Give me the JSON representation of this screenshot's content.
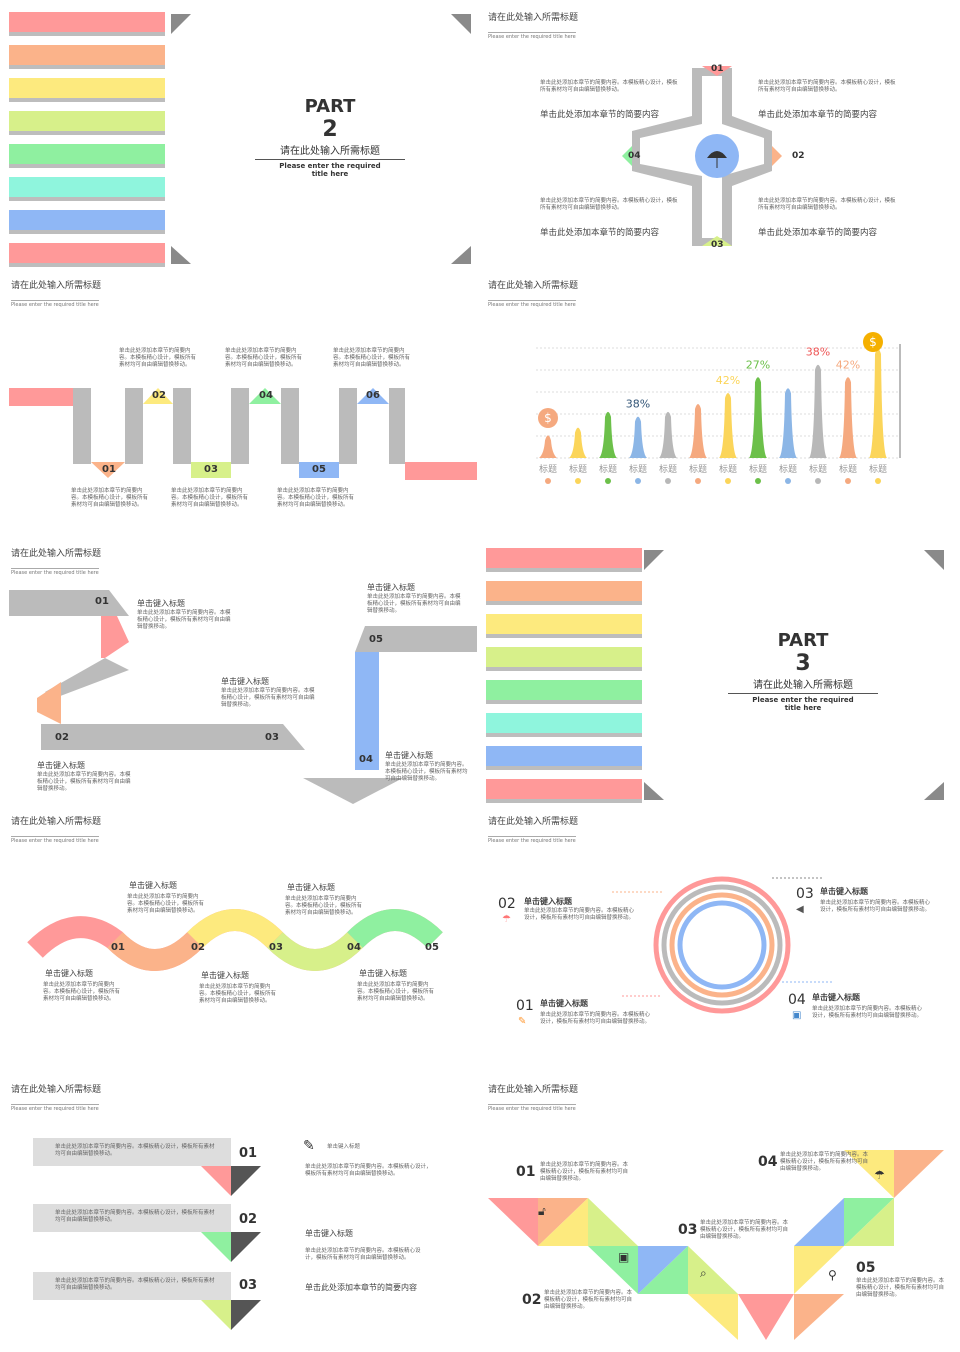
{
  "common": {
    "header_title": "请在此处输入所需标题",
    "header_sub": "Please enter the required title here",
    "summary": "单击此处添加本章节的简要内容",
    "desc_long": "单击此处添加本章节的简要内容。本模板精心设计，模板所有素材均可自由编辑替换移动。",
    "click_title": "单击键入标题",
    "label": "标题"
  },
  "part2": {
    "part": "PART",
    "number": "2",
    "title": "请在此处输入所需标题",
    "sub1": "Please enter the required",
    "sub2": "title here"
  },
  "part3": {
    "part": "PART",
    "number": "3",
    "title": "请在此处输入所需标题",
    "sub1": "Please enter the required",
    "sub2": "title here"
  },
  "cross": {
    "nums": [
      "01",
      "02",
      "03",
      "04"
    ]
  },
  "wave": {
    "nums": [
      "01",
      "02",
      "03",
      "04",
      "05",
      "06"
    ]
  },
  "chart_data": {
    "type": "bar",
    "categories": [
      "标题",
      "标题",
      "标题",
      "标题",
      "标题",
      "标题",
      "标题",
      "标题",
      "标题",
      "标题",
      "标题",
      "标题"
    ],
    "values": [
      15,
      20,
      30,
      27,
      30,
      35,
      42,
      52,
      45,
      60,
      52,
      70
    ],
    "data_labels": [
      "",
      "",
      "",
      "38%",
      "",
      "",
      "42%",
      "27%",
      "",
      "38%",
      "42%",
      ""
    ],
    "colors": [
      "#f5a97f",
      "#fbd55a",
      "#6cc04a",
      "#8cb6e6",
      "#b8b8b8",
      "#f5a97f",
      "#fbd55a",
      "#6cc04a",
      "#8cb6e6",
      "#b8b8b8",
      "#f5a97f",
      "#fbd55a"
    ],
    "icons": [
      "dollar-icon",
      "dollar-icon"
    ]
  },
  "zigzag": {
    "nums": [
      "01",
      "02",
      "03",
      "04",
      "05"
    ]
  },
  "snake": {
    "nums": [
      "01",
      "02",
      "03",
      "04",
      "05"
    ]
  },
  "rings": {
    "nums": [
      "01",
      "02",
      "03",
      "04"
    ],
    "icons": [
      "pencil-icon",
      "umbrella-icon",
      "megaphone-icon",
      "briefcase-icon"
    ]
  },
  "tabs": {
    "nums": [
      "01",
      "02",
      "03"
    ]
  },
  "tri": {
    "nums": [
      "01",
      "02",
      "03",
      "04",
      "05"
    ]
  },
  "colors": {
    "red": "#f99",
    "orange": "#fbb38a",
    "yellow": "#fdea7e",
    "lime": "#d7f08a",
    "green": "#8ff0a0",
    "cyan": "#8ff5dd",
    "blue": "#8fb7f5",
    "pink": "#f99",
    "gray": "#bdbdbd"
  }
}
